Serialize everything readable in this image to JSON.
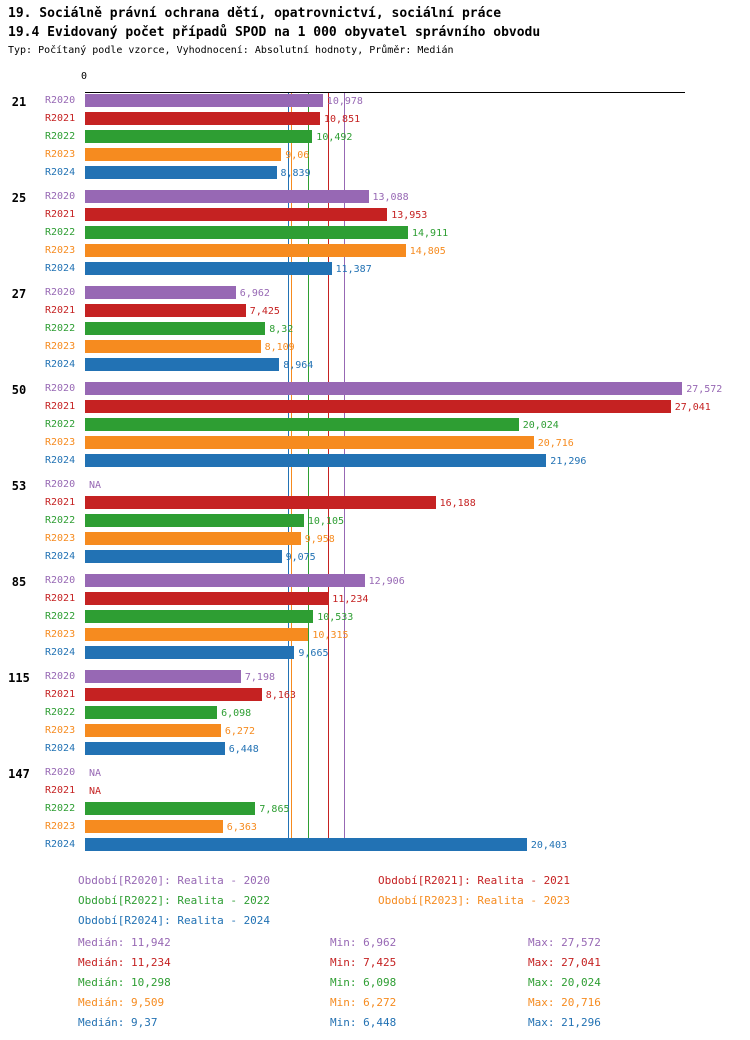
{
  "header": {
    "title1": "19. Sociálně právní ochrana dětí, opatrovnictví, sociální práce",
    "title2": "19.4 Evidovaný počet případů SPOD na 1 000 obyvatel správního obvodu",
    "subtitle": "Typ: Počítaný podle vzorce, Vyhodnocení: Absolutní hodnoty, Průměr: Medián"
  },
  "chart_data": {
    "type": "bar",
    "orientation": "horizontal",
    "axis_origin_label": "0",
    "xlim": [
      0,
      27.7
    ],
    "grid": false,
    "series": [
      "R2020",
      "R2021",
      "R2022",
      "R2023",
      "R2024"
    ],
    "colors": [
      "#9768b4",
      "#c52222",
      "#2e9e33",
      "#f68b1f",
      "#2272b4"
    ],
    "na_text": "NA",
    "groups": [
      {
        "label": "21",
        "values": [
          10.978,
          10.851,
          10.492,
          9.06,
          8.839
        ],
        "display": [
          "10,978",
          "10,851",
          "10,492",
          "9,06",
          "8,839"
        ]
      },
      {
        "label": "25",
        "values": [
          13.088,
          13.953,
          14.911,
          14.805,
          11.387
        ],
        "display": [
          "13,088",
          "13,953",
          "14,911",
          "14,805",
          "11,387"
        ]
      },
      {
        "label": "27",
        "values": [
          6.962,
          7.425,
          8.32,
          8.109,
          8.964
        ],
        "display": [
          "6,962",
          "7,425",
          "8,32",
          "8,109",
          "8,964"
        ]
      },
      {
        "label": "50",
        "values": [
          27.572,
          27.041,
          20.024,
          20.716,
          21.296
        ],
        "display": [
          "27,572",
          "27,041",
          "20,024",
          "20,716",
          "21,296"
        ]
      },
      {
        "label": "53",
        "values": [
          null,
          16.188,
          10.105,
          9.958,
          9.075
        ],
        "display": [
          "NA",
          "16,188",
          "10,105",
          "9,958",
          "9,075"
        ]
      },
      {
        "label": "85",
        "values": [
          12.906,
          11.234,
          10.533,
          10.315,
          9.665
        ],
        "display": [
          "12,906",
          "11,234",
          "10,533",
          "10,315",
          "9,665"
        ]
      },
      {
        "label": "115",
        "values": [
          7.198,
          8.163,
          6.098,
          6.272,
          6.448
        ],
        "display": [
          "7,198",
          "8,163",
          "6,098",
          "6,272",
          "6,448"
        ]
      },
      {
        "label": "147",
        "values": [
          null,
          null,
          7.865,
          6.363,
          20.403
        ],
        "display": [
          "NA",
          "NA",
          "7,865",
          "6,363",
          "20,403"
        ]
      }
    ],
    "medians": [
      11.942,
      11.234,
      10.298,
      9.509,
      9.37
    ]
  },
  "legend": {
    "items": [
      {
        "label": "Období[R2020]: Realita - 2020",
        "color": "#9768b4"
      },
      {
        "label": "Období[R2021]: Realita - 2021",
        "color": "#c52222"
      },
      {
        "label": "Období[R2022]: Realita - 2022",
        "color": "#2e9e33"
      },
      {
        "label": "Období[R2023]: Realita - 2023",
        "color": "#f68b1f"
      },
      {
        "label": "Období[R2024]: Realita - 2024",
        "color": "#2272b4"
      }
    ]
  },
  "stats": {
    "rows": [
      {
        "median": "Medián: 11,942",
        "min": "Min: 6,962",
        "max": "Max: 27,572",
        "color": "#9768b4"
      },
      {
        "median": "Medián: 11,234",
        "min": "Min: 7,425",
        "max": "Max: 27,041",
        "color": "#c52222"
      },
      {
        "median": "Medián: 10,298",
        "min": "Min: 6,098",
        "max": "Max: 20,024",
        "color": "#2e9e33"
      },
      {
        "median": "Medián: 9,509",
        "min": "Min: 6,272",
        "max": "Max: 20,716",
        "color": "#f68b1f"
      },
      {
        "median": "Medián: 9,37",
        "min": "Min: 6,448",
        "max": "Max: 21,296",
        "color": "#2272b4"
      }
    ]
  }
}
